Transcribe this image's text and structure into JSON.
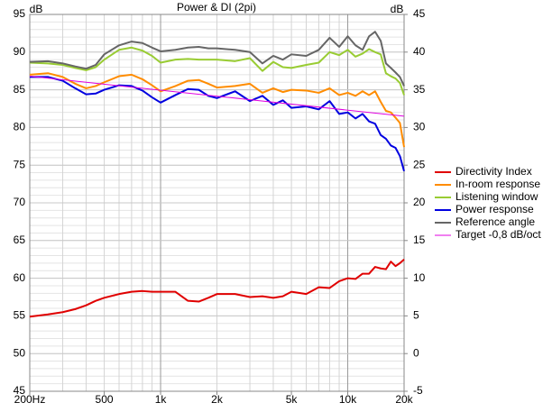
{
  "chart_data": {
    "type": "line",
    "title": "Power & DI (2pi)",
    "y_label": "dB",
    "y2_label": "dB",
    "x": [
      200,
      250,
      300,
      350,
      400,
      450,
      500,
      600,
      700,
      800,
      900,
      1000,
      1200,
      1400,
      1600,
      1800,
      2000,
      2500,
      3000,
      3500,
      4000,
      4500,
      5000,
      6000,
      7000,
      8000,
      9000,
      10000,
      11000,
      12000,
      13000,
      14000,
      15000,
      16000,
      17000,
      18000,
      19000,
      20000
    ],
    "log_x": true,
    "grid": true,
    "legend": "right",
    "xlim": [
      200,
      20000
    ],
    "xticks": [
      {
        "value": 200,
        "label": "200Hz"
      },
      500,
      {
        "value": 1000,
        "label": "1k"
      },
      {
        "value": 2000,
        "label": "2k"
      },
      {
        "value": 5000,
        "label": "5k"
      },
      {
        "value": 10000,
        "label": "10k"
      },
      {
        "value": 20000,
        "label": "20k"
      }
    ],
    "ylim": [
      45,
      95
    ],
    "yticks": [
      45,
      50,
      55,
      60,
      65,
      70,
      75,
      80,
      85,
      90,
      95
    ],
    "y2lim": [
      -5,
      45
    ],
    "y2ticks": [
      -5,
      0,
      5,
      10,
      15,
      20,
      25,
      30,
      35,
      40,
      45
    ],
    "series": [
      {
        "name": "Directivity Index",
        "color": "#e00000",
        "axis": "y2",
        "values": [
          4.9,
          5.2,
          5.5,
          5.9,
          6.4,
          7,
          7.4,
          7.9,
          8.2,
          8.3,
          8.2,
          8.2,
          8.2,
          7,
          6.9,
          7.4,
          7.9,
          7.9,
          7.5,
          7.6,
          7.4,
          7.6,
          8.2,
          7.9,
          8.8,
          8.7,
          9.6,
          10,
          9.9,
          10.6,
          10.6,
          11.5,
          11.3,
          11.2,
          12.2,
          11.6,
          12,
          12.5
        ]
      },
      {
        "name": "In-room response",
        "color": "#ff8c00",
        "values": [
          87,
          87.2,
          86.7,
          85.8,
          85.2,
          85.5,
          86,
          86.8,
          87,
          86.4,
          85.6,
          84.8,
          85.5,
          86.2,
          86.3,
          85.8,
          85.3,
          85.5,
          85.8,
          84.6,
          85.2,
          84.7,
          85,
          84.9,
          84.6,
          85.2,
          84.3,
          84.6,
          84.2,
          84.8,
          84.3,
          84.8,
          83.4,
          82.2,
          82,
          81.3,
          80.6,
          77.4
        ]
      },
      {
        "name": "Listening window",
        "color": "#99cc33",
        "values": [
          88.6,
          88.5,
          88.3,
          87.9,
          87.6,
          88,
          89,
          90.3,
          90.6,
          90.2,
          89.5,
          88.6,
          89,
          89.1,
          89,
          89,
          89,
          88.8,
          89.2,
          87.5,
          88.7,
          88,
          87.9,
          88.3,
          88.6,
          90,
          89.6,
          90.3,
          89.4,
          89.8,
          90.4,
          90,
          89.7,
          87.2,
          86.8,
          86.5,
          85.9,
          84.3
        ]
      },
      {
        "name": "Power response",
        "color": "#0000e0",
        "values": [
          86.7,
          86.7,
          86.2,
          85.2,
          84.4,
          84.5,
          85,
          85.6,
          85.5,
          84.9,
          84,
          83.3,
          84.3,
          85.1,
          85,
          84.2,
          83.9,
          84.8,
          83.5,
          84.2,
          83,
          83.6,
          82.6,
          82.8,
          82.4,
          83.5,
          81.8,
          82,
          81.2,
          81.8,
          80.8,
          80.5,
          79,
          78.5,
          77.6,
          77.3,
          76.2,
          74.2
        ]
      },
      {
        "name": "Reference angle",
        "color": "#666666",
        "values": [
          88.7,
          88.8,
          88.5,
          88.1,
          87.8,
          88.3,
          89.7,
          90.9,
          91.4,
          91.2,
          90.6,
          90.1,
          90.3,
          90.6,
          90.7,
          90.5,
          90.5,
          90.3,
          90,
          88.5,
          89.5,
          89,
          89.7,
          89.5,
          90.3,
          91.9,
          90.7,
          92.1,
          90.9,
          90.3,
          92.1,
          92.7,
          91.5,
          88.5,
          87.9,
          87.3,
          86.7,
          85.5
        ]
      },
      {
        "name": "Target -0,8 dB/oct",
        "color": "#e000e0",
        "thin": true,
        "x": [
          200,
          20000
        ],
        "values": [
          86.8,
          81.5
        ]
      }
    ]
  }
}
